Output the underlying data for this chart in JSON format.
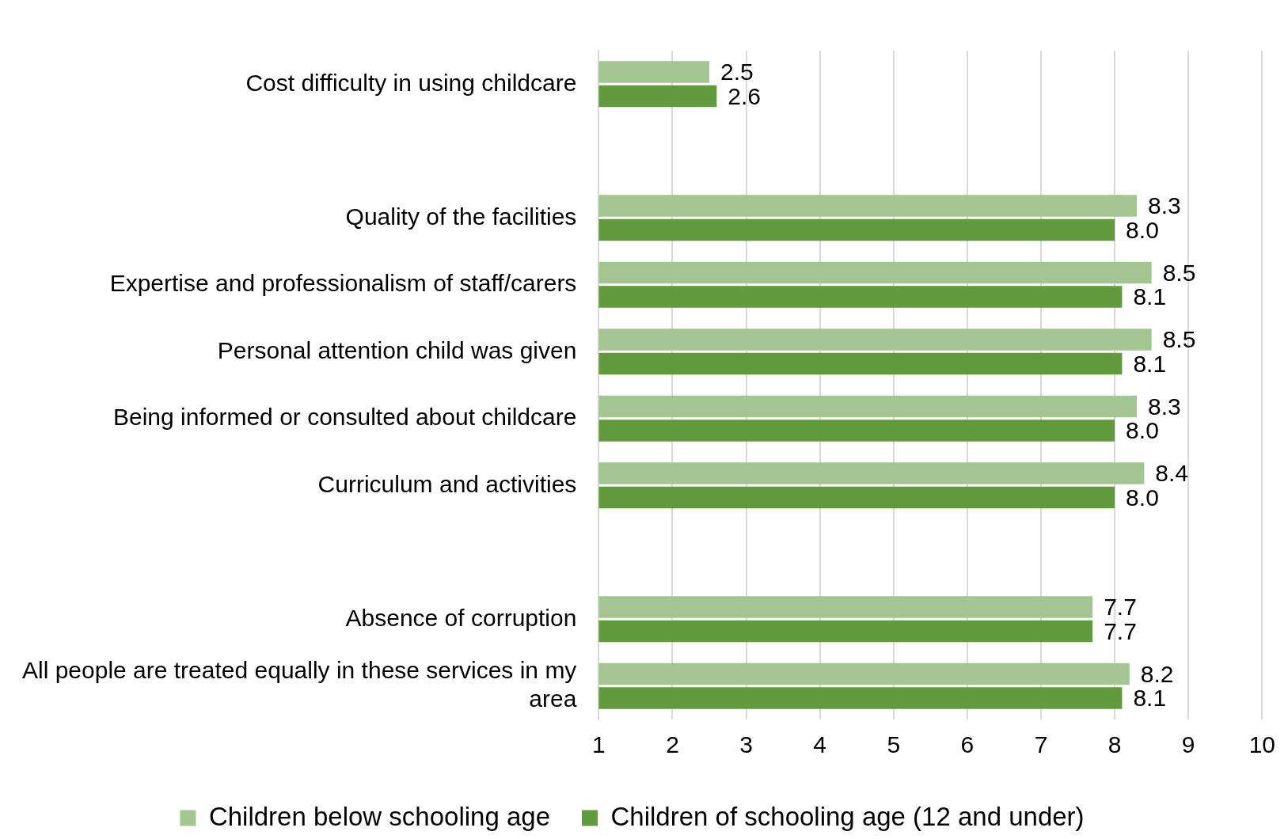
{
  "chart_data": {
    "type": "bar",
    "orientation": "horizontal",
    "categories": [
      "Cost difficulty in using childcare",
      null,
      "Quality of the facilities",
      "Expertise and professionalism of staff/carers",
      "Personal attention child was given",
      "Being informed or consulted about childcare",
      "Curriculum and activities",
      null,
      "Absence of corruption",
      "All people are treated equally in these services in my area"
    ],
    "series": [
      {
        "name": "Children below schooling age",
        "color": "#a2c592",
        "values": [
          2.5,
          null,
          8.3,
          8.5,
          8.5,
          8.3,
          8.4,
          null,
          7.7,
          8.2
        ],
        "value_labels": [
          "2.5",
          null,
          "8.3",
          "8.5",
          "8.5",
          "8.3",
          "8.4",
          null,
          "7.7",
          "8.2"
        ]
      },
      {
        "name": "Children of schooling age (12 and under)",
        "color": "#629b3e",
        "values": [
          2.6,
          null,
          8.0,
          8.1,
          8.1,
          8.0,
          8.0,
          null,
          7.7,
          8.1
        ],
        "value_labels": [
          "2.6",
          null,
          "8.0",
          "8.1",
          "8.1",
          "8.0",
          "8.0",
          null,
          "7.7",
          "8.1"
        ]
      }
    ],
    "xlim": [
      1,
      10
    ],
    "xticks": [
      1,
      2,
      3,
      4,
      5,
      6,
      7,
      8,
      9,
      10
    ],
    "grid": "x",
    "legend": "bottom"
  }
}
